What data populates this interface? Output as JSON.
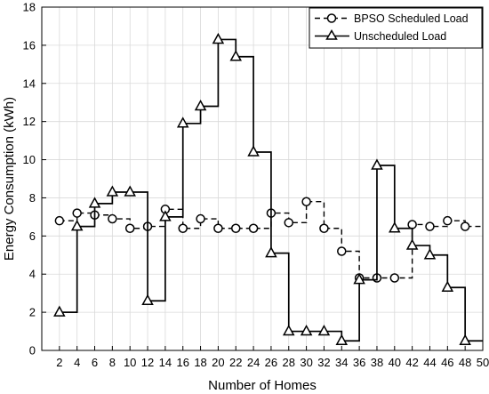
{
  "chart_data": {
    "type": "line",
    "title": "",
    "xlabel": "Number of Homes",
    "ylabel": "Energy Consumption (kWh)",
    "xlim": [
      0,
      50
    ],
    "ylim": [
      0,
      18
    ],
    "xticks": [
      2,
      4,
      6,
      8,
      10,
      12,
      14,
      16,
      18,
      20,
      22,
      24,
      26,
      28,
      30,
      32,
      34,
      36,
      38,
      40,
      42,
      44,
      46,
      48,
      50
    ],
    "yticks": [
      0,
      2,
      4,
      6,
      8,
      10,
      12,
      14,
      16,
      18
    ],
    "grid": true,
    "legend_position": "top-right",
    "step": true,
    "series": [
      {
        "name": "BPSO Scheduled Load",
        "marker": "circle",
        "line": "dashed",
        "color": "#000000",
        "x": [
          2,
          4,
          6,
          8,
          10,
          12,
          14,
          16,
          18,
          20,
          22,
          24,
          26,
          28,
          30,
          32,
          34,
          36,
          38,
          40,
          42,
          44,
          46,
          48
        ],
        "y": [
          6.8,
          7.2,
          7.1,
          6.9,
          6.4,
          6.5,
          7.4,
          6.4,
          6.9,
          6.4,
          6.4,
          6.4,
          7.2,
          6.7,
          7.8,
          6.4,
          5.2,
          3.8,
          3.8,
          3.8,
          6.6,
          6.5,
          6.8,
          6.5
        ]
      },
      {
        "name": "Unscheduled Load",
        "marker": "triangle",
        "line": "solid",
        "color": "#000000",
        "x": [
          2,
          4,
          6,
          8,
          10,
          12,
          14,
          16,
          18,
          20,
          22,
          24,
          26,
          28,
          30,
          32,
          34,
          36,
          38,
          40,
          42,
          44,
          46,
          48
        ],
        "y": [
          2.0,
          6.5,
          7.7,
          8.3,
          8.3,
          2.6,
          7.0,
          11.9,
          12.8,
          16.3,
          15.4,
          10.4,
          5.1,
          1.0,
          1.0,
          1.0,
          0.5,
          3.7,
          9.7,
          6.4,
          5.5,
          5.0,
          3.3,
          0.5
        ]
      }
    ]
  }
}
